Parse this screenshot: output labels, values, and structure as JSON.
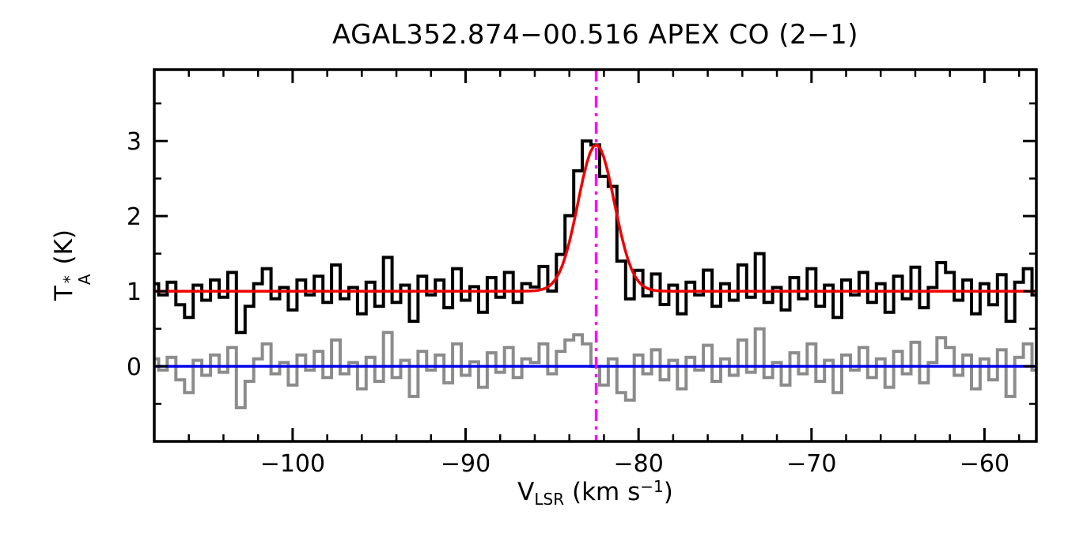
{
  "chart": {
    "title": "AGAL352.874−00.516  APEX CO (2−1)",
    "y_axis": {
      "label_t": "T",
      "label_sup": "*",
      "label_sub": "A",
      "label_rest": " (K)",
      "tick_labels": [
        "0",
        "1",
        "2",
        "3"
      ],
      "tick_values": [
        0,
        1,
        2,
        3
      ],
      "minor_step": 0.5
    },
    "x_axis": {
      "label_v": "V",
      "label_sub": "LSR",
      "label_mid": " (km s",
      "label_sup": "−1",
      "label_end": ")",
      "tick_labels": [
        "−100",
        "−90",
        "−80",
        "−70",
        "−60"
      ],
      "tick_values": [
        -100,
        -90,
        -80,
        -70,
        -60
      ],
      "minor_step": 2
    },
    "colors": {
      "spectrum": "#000000",
      "residual": "#8c8c8c",
      "fit": "#ee0000",
      "baseline": "#0000ee",
      "marker": "#ff00ff",
      "frame": "#000000",
      "background": "#ffffff"
    }
  },
  "chart_data": {
    "type": "line",
    "title": "AGAL352.874−00.516  APEX CO (2−1)",
    "xlabel": "V_LSR (km s^-1)",
    "ylabel": "T_A^* (K)",
    "xlim": [
      -108,
      -57
    ],
    "ylim": [
      -1.0,
      3.95
    ],
    "grid": false,
    "legend": "none",
    "channel_width": 0.5,
    "x": [
      -108,
      -107.5,
      -107,
      -106.5,
      -106,
      -105.5,
      -105,
      -104.5,
      -104,
      -103.5,
      -103,
      -102.5,
      -102,
      -101.5,
      -101,
      -100.5,
      -100,
      -99.5,
      -99,
      -98.5,
      -98,
      -97.5,
      -97,
      -96.5,
      -96,
      -95.5,
      -95,
      -94.5,
      -94,
      -93.5,
      -93,
      -92.5,
      -92,
      -91.5,
      -91,
      -90.5,
      -90,
      -89.5,
      -89,
      -88.5,
      -88,
      -87.5,
      -87,
      -86.5,
      -86,
      -85.5,
      -85,
      -84.5,
      -84,
      -83.5,
      -83,
      -82.5,
      -82,
      -81.5,
      -81,
      -80.5,
      -80,
      -79.5,
      -79,
      -78.5,
      -78,
      -77.5,
      -77,
      -76.5,
      -76,
      -75.5,
      -75,
      -74.5,
      -74,
      -73.5,
      -73,
      -72.5,
      -72,
      -71.5,
      -71,
      -70.5,
      -70,
      -69.5,
      -69,
      -68.5,
      -68,
      -67.5,
      -67,
      -66.5,
      -66,
      -65.5,
      -65,
      -64.5,
      -64,
      -63.5,
      -63,
      -62.5,
      -62,
      -61.5,
      -61,
      -60.5,
      -60,
      -59.5,
      -59,
      -58.5,
      -58,
      -57.5,
      -57
    ],
    "residual": [
      0.1,
      -0.05,
      0.12,
      -0.18,
      -0.35,
      0.08,
      -0.12,
      0.15,
      -0.08,
      0.25,
      -0.55,
      -0.2,
      0.1,
      0.3,
      -0.1,
      0.05,
      -0.25,
      0.15,
      -0.05,
      0.2,
      -0.15,
      0.35,
      -0.1,
      0.05,
      -0.3,
      0.12,
      -0.2,
      0.45,
      -0.15,
      0.08,
      -0.4,
      0.2,
      -0.05,
      0.15,
      -0.22,
      0.3,
      -0.12,
      0.06,
      -0.28,
      0.18,
      -0.08,
      0.25,
      -0.15,
      0.1,
      0.05,
      0.3,
      -0.1,
      0.2,
      0.35,
      0.42,
      0.3,
      0.0,
      -0.25,
      0.1,
      -0.35,
      -0.45,
      0.15,
      -0.1,
      0.22,
      -0.18,
      0.08,
      -0.3,
      0.12,
      -0.05,
      0.28,
      -0.2,
      0.1,
      -0.12,
      0.35,
      -0.08,
      0.5,
      -0.15,
      0.05,
      -0.25,
      0.18,
      -0.1,
      0.3,
      -0.2,
      0.08,
      -0.35,
      0.15,
      -0.05,
      0.25,
      -0.15,
      0.1,
      -0.28,
      0.2,
      -0.1,
      0.32,
      -0.22,
      0.05,
      0.38,
      0.25,
      -0.12,
      0.15,
      -0.3,
      0.1,
      -0.18,
      0.22,
      -0.4,
      0.12,
      0.3,
      -0.05
    ],
    "fit": {
      "type": "gaussian",
      "baseline": 1.0,
      "amplitude": 1.95,
      "center": -82.45,
      "sigma": 1.05
    },
    "marker_velocity": -82.45,
    "series": [
      {
        "name": "observed spectrum",
        "role": "histogram",
        "color": "#000000",
        "note": "values = fit(x) + residual"
      },
      {
        "name": "gaussian fit",
        "role": "curve",
        "color": "#ee0000"
      },
      {
        "name": "residual",
        "role": "histogram",
        "color": "#8c8c8c"
      },
      {
        "name": "zero baseline",
        "role": "hline",
        "y": 0,
        "color": "#0000ee"
      },
      {
        "name": "systemic velocity marker",
        "role": "vline",
        "x": -82.45,
        "color": "#ff00ff",
        "style": "dash-dot"
      }
    ]
  }
}
